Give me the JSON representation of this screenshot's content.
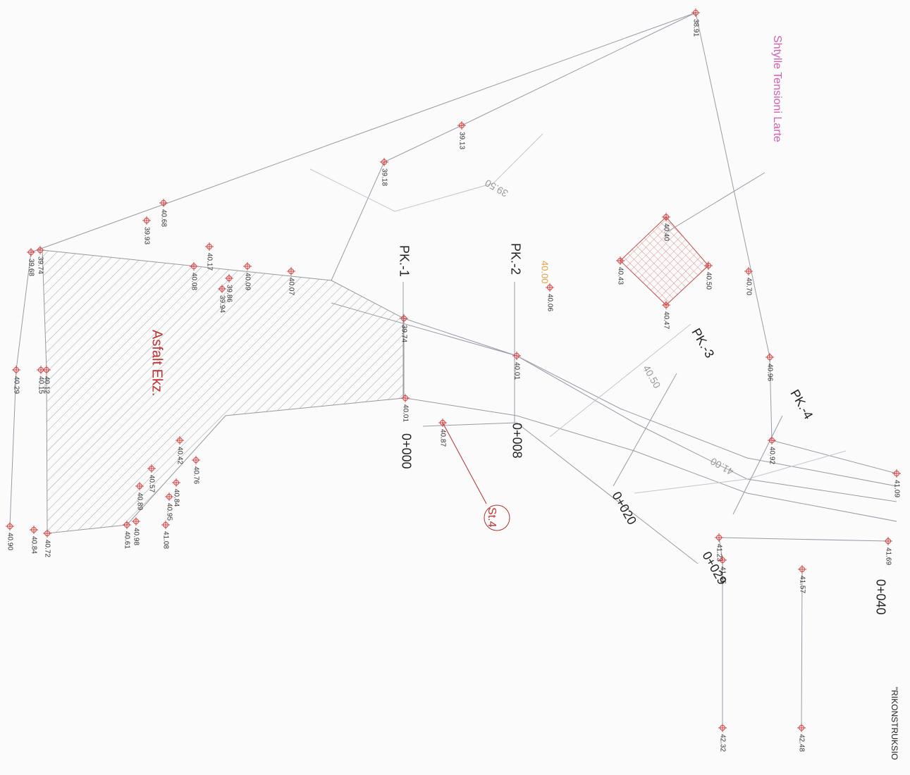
{
  "labels": {
    "power_line": "Shtylle Tensioni Larte",
    "pk1": "PK.-1",
    "pk2": "PK.-2",
    "pk3": "PK.-3",
    "pk4": "PK.-4",
    "asphalt": "Asfalt Ekz.",
    "ch0": "0+000",
    "ch8": "0+008",
    "ch20": "0+020",
    "ch29": "0+029",
    "ch40": "0+040",
    "station": "St.4",
    "contour_3950": "39.50",
    "contour_4050": "40.50",
    "contour_4100": "41.00",
    "contour_4000": "40.00",
    "project": "\"RIKONSTRUKSIO"
  },
  "elevations": [
    "38.91",
    "39.13",
    "39.18",
    "40.68",
    "39.93",
    "39.74",
    "39.68",
    "40.17",
    "40.08",
    "40.09",
    "39.86",
    "39.94",
    "40.07",
    "39.74",
    "40.01",
    "40.12",
    "40.29",
    "40.15",
    "40.01",
    "40.87",
    "40.42",
    "40.76",
    "40.57",
    "40.89",
    "40.84",
    "40.95",
    "41.08",
    "40.61",
    "40.98",
    "40.72",
    "40.84",
    "40.90",
    "40.40",
    "40.43",
    "40.50",
    "40.47",
    "40.06",
    "40.70",
    "40.96",
    "40.92",
    "41.23",
    "41.45",
    "41.57",
    "41.69",
    "41.09",
    "42.32",
    "42.48"
  ]
}
